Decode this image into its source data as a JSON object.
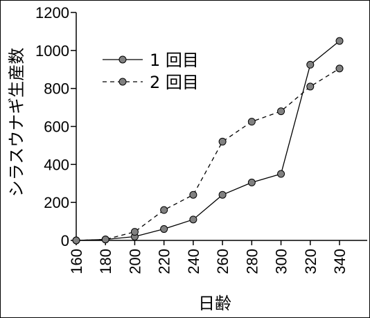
{
  "chart_data": {
    "type": "line",
    "title": "",
    "xlabel": "日齢",
    "ylabel": "シラスウナギ生産数",
    "xlim": [
      160,
      340
    ],
    "ylim": [
      0,
      1200
    ],
    "x_ticks": [
      "160",
      "180",
      "200",
      "220",
      "240",
      "260",
      "280",
      "300",
      "320",
      "340"
    ],
    "y_ticks": [
      "0",
      "200",
      "400",
      "600",
      "800",
      "1000",
      "1200"
    ],
    "legend_position": "top-left",
    "grid": false,
    "series": [
      {
        "name": "1 回目",
        "style": "solid",
        "color": "#000000",
        "marker_color": "#808080",
        "x": [
          160,
          180,
          200,
          220,
          240,
          260,
          280,
          300,
          320,
          340
        ],
        "values": [
          0,
          5,
          20,
          60,
          110,
          240,
          305,
          350,
          925,
          1050
        ]
      },
      {
        "name": "2 回目",
        "style": "dashed",
        "color": "#000000",
        "marker_color": "#808080",
        "x": [
          160,
          180,
          200,
          220,
          240,
          260,
          280,
          300,
          320,
          340
        ],
        "values": [
          0,
          5,
          45,
          160,
          240,
          520,
          625,
          680,
          810,
          905
        ]
      }
    ]
  }
}
